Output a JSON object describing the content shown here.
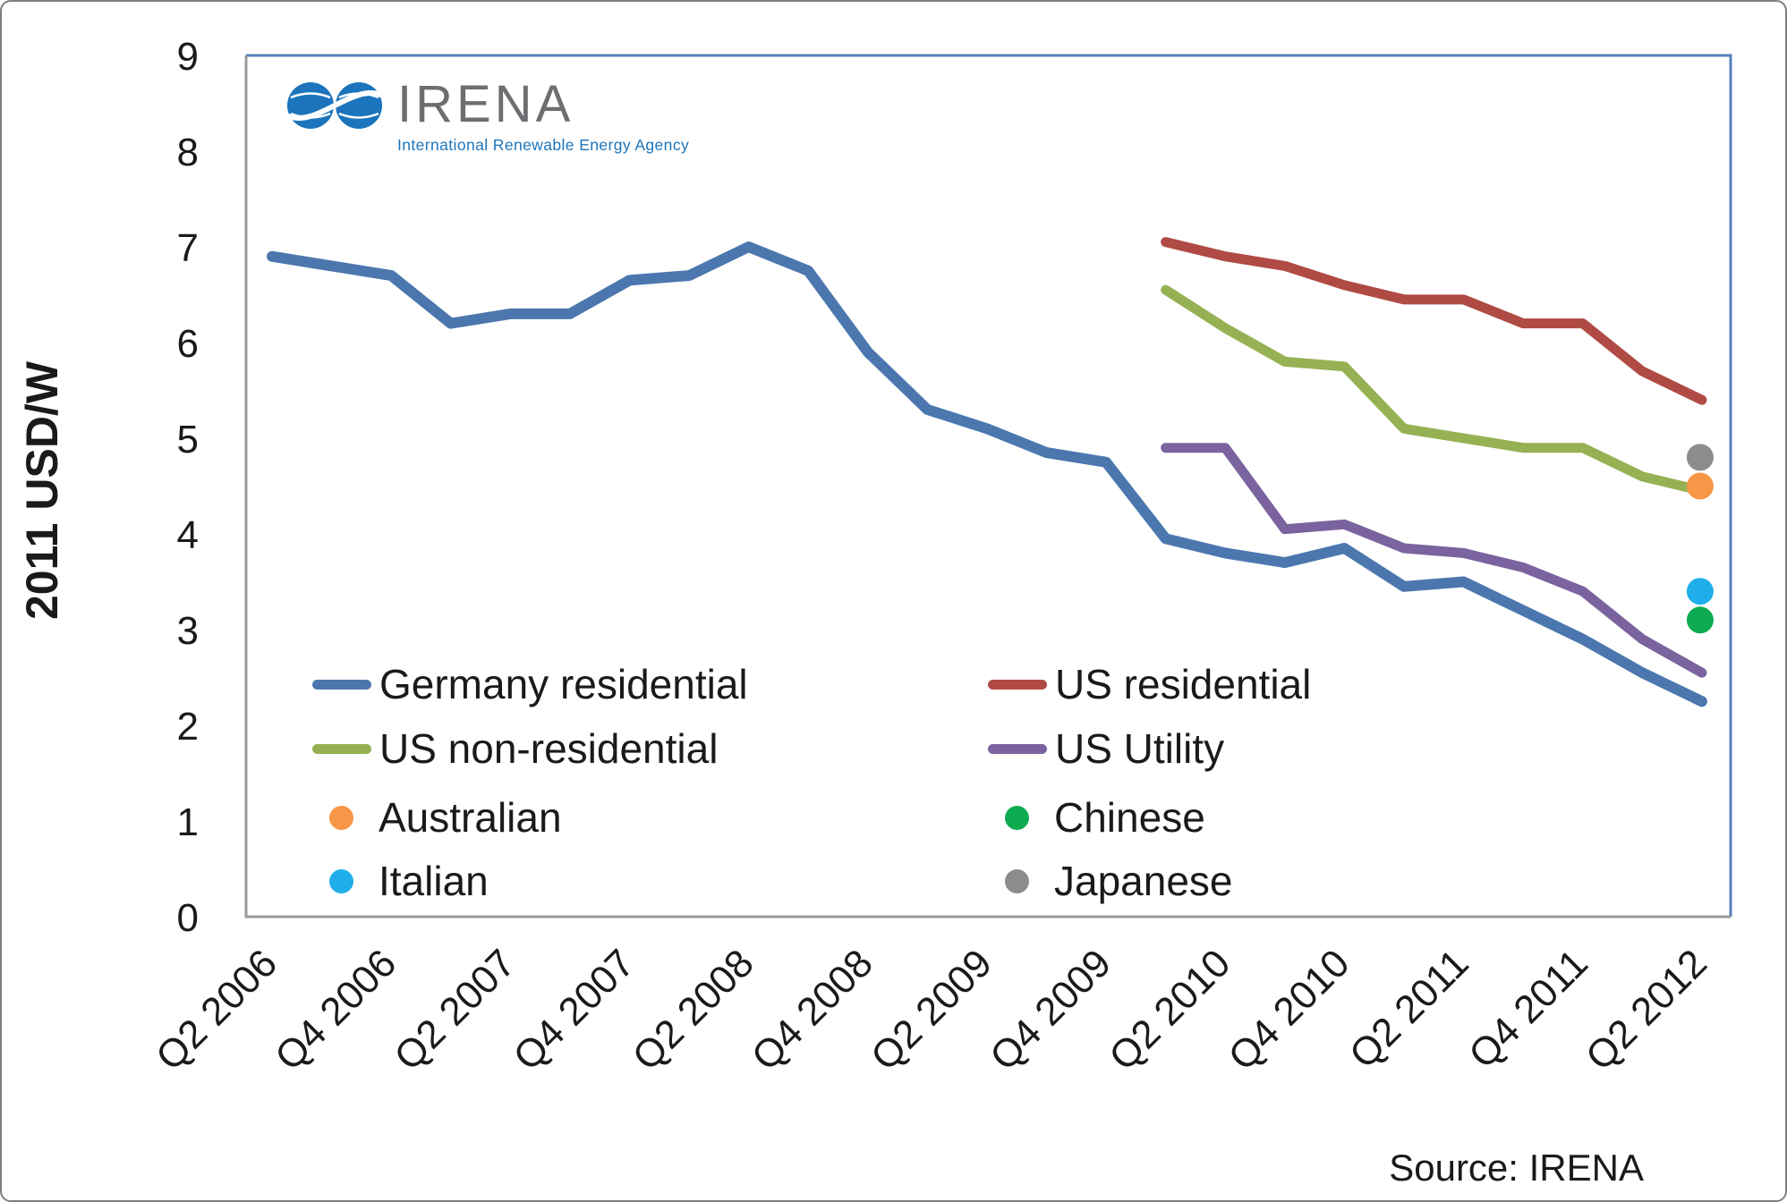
{
  "logo": {
    "brand": "IRENA",
    "tagline": "International Renewable Energy Agency"
  },
  "source": {
    "label": "Source: IRENA"
  },
  "y_axis": {
    "title": "2011 USD/W"
  },
  "legend": {
    "items": [
      {
        "label": "Germany residential",
        "marker": "line",
        "color": "#4b77ae"
      },
      {
        "label": "US non-residential",
        "marker": "line",
        "color": "#96b153"
      },
      {
        "label": "Australian",
        "marker": "dot",
        "color": "#f79646"
      },
      {
        "label": "Italian",
        "marker": "dot",
        "color": "#1faee9"
      },
      {
        "label": "US residential",
        "marker": "line",
        "color": "#af4a44"
      },
      {
        "label": "US Utility",
        "marker": "line",
        "color": "#7a639e"
      },
      {
        "label": "Chinese",
        "marker": "dot",
        "color": "#0eac51"
      },
      {
        "label": "Japanese",
        "marker": "dot",
        "color": "#8c8c8c"
      }
    ]
  },
  "chart_data": {
    "type": "line",
    "title": "",
    "ylabel": "2011 USD/W",
    "ylim": [
      0,
      9
    ],
    "y_ticks": [
      0,
      1,
      2,
      3,
      4,
      5,
      6,
      7,
      8,
      9
    ],
    "x_unit": "quarter",
    "x_ticks_every": 2,
    "x_tick_labels": [
      "Q2 2006",
      "Q4 2006",
      "Q2 2007",
      "Q4 2007",
      "Q2 2008",
      "Q4 2008",
      "Q2 2009",
      "Q4 2009",
      "Q2 2010",
      "Q4 2010",
      "Q2 2011",
      "Q4 2011",
      "Q2 2012"
    ],
    "grid": false,
    "legend_position": "inside lower-left",
    "series": [
      {
        "name": "Germany residential",
        "color": "#4b77ae",
        "start_index": 0,
        "values": [
          6.9,
          6.8,
          6.7,
          6.2,
          6.3,
          6.3,
          6.65,
          6.7,
          7.0,
          6.75,
          5.9,
          5.3,
          5.1,
          4.85,
          4.75,
          3.95,
          3.8,
          3.7,
          3.85,
          3.45,
          3.5,
          3.2,
          2.9,
          2.55,
          2.25
        ]
      },
      {
        "name": "US residential",
        "color": "#af4a44",
        "start_index": 15,
        "values": [
          7.05,
          6.9,
          6.8,
          6.6,
          6.45,
          6.45,
          6.2,
          6.2,
          5.7,
          5.4
        ]
      },
      {
        "name": "US non-residential",
        "color": "#96b153",
        "start_index": 15,
        "values": [
          6.55,
          6.15,
          5.8,
          5.75,
          5.1,
          5.0,
          4.9,
          4.9,
          4.6,
          4.45
        ]
      },
      {
        "name": "US Utility",
        "color": "#7a639e",
        "start_index": 15,
        "values": [
          4.9,
          4.9,
          4.05,
          4.1,
          3.85,
          3.8,
          3.65,
          3.4,
          2.9,
          2.55
        ]
      }
    ],
    "points": [
      {
        "name": "Japanese",
        "color": "#8c8c8c",
        "x_index": 24,
        "value": 4.8
      },
      {
        "name": "Australian",
        "color": "#f79646",
        "x_index": 24,
        "value": 4.5
      },
      {
        "name": "Italian",
        "color": "#1faee9",
        "x_index": 24,
        "value": 3.4
      },
      {
        "name": "Chinese",
        "color": "#0eac51",
        "x_index": 24,
        "value": 3.1
      }
    ]
  }
}
